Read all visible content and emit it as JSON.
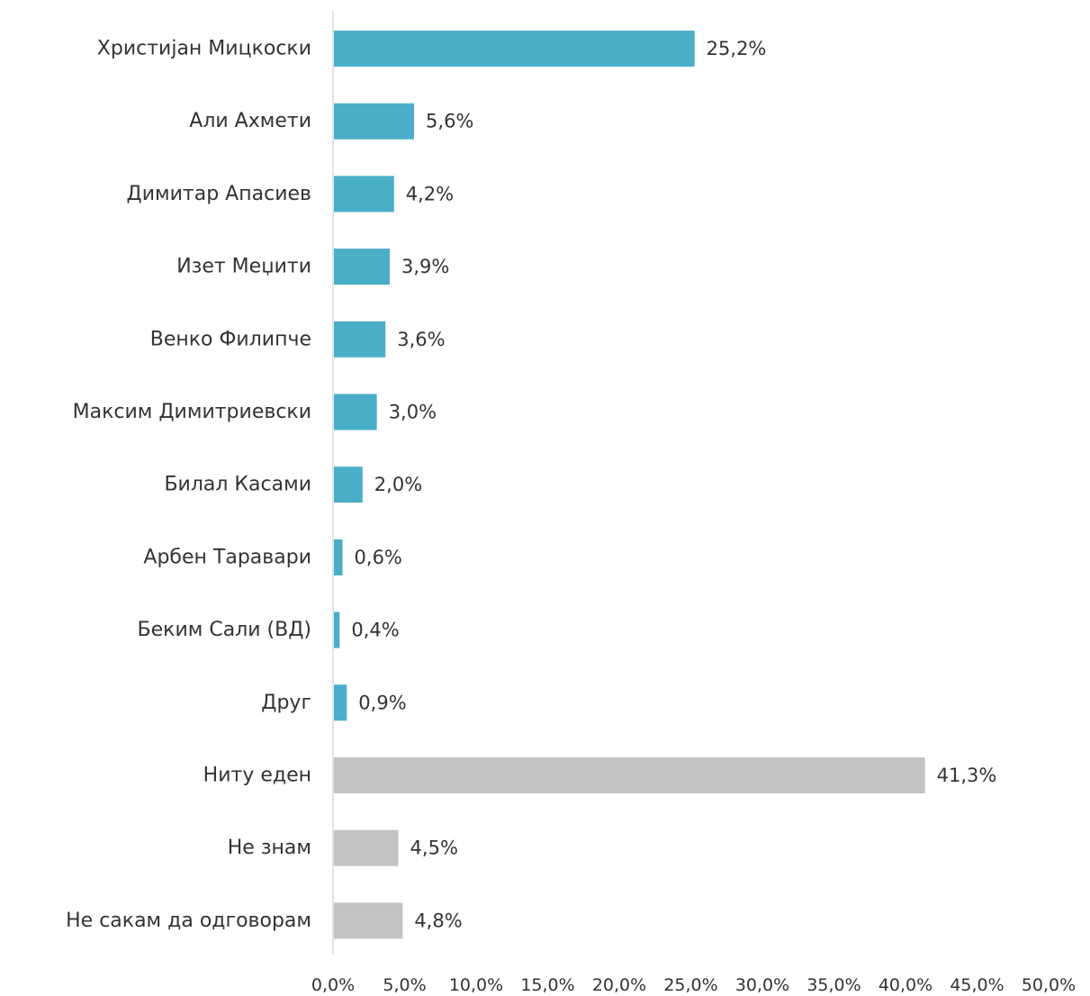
{
  "chart_data": {
    "type": "bar",
    "orientation": "horizontal",
    "categories": [
      "Христијан Мицкоски",
      "Али Ахмети",
      "Димитар Апасиев",
      "Изет Меџити",
      "Венко Филипче",
      "Максим Димитриевски",
      "Билал Касами",
      "Арбен Таравари",
      "Беким Сали (ВД)",
      "Друг",
      "Ниту еден",
      "Не знам",
      "Не сакам да одговорам"
    ],
    "values": [
      25.2,
      5.6,
      4.2,
      3.9,
      3.6,
      3.0,
      2.0,
      0.6,
      0.4,
      0.9,
      41.3,
      4.5,
      4.8
    ],
    "value_labels": [
      "25,2%",
      "5,6%",
      "4,2%",
      "3,9%",
      "3,6%",
      "3,0%",
      "2,0%",
      "0,6%",
      "0,4%",
      "0,9%",
      "41,3%",
      "4,5%",
      "4,8%"
    ],
    "bar_colors": [
      "#4aaec8",
      "#4aaec8",
      "#4aaec8",
      "#4aaec8",
      "#4aaec8",
      "#4aaec8",
      "#4aaec8",
      "#4aaec8",
      "#4aaec8",
      "#4aaec8",
      "#c3c3c3",
      "#c3c3c3",
      "#c3c3c3"
    ],
    "xlim": [
      0,
      50
    ],
    "x_ticks": [
      0,
      5,
      10,
      15,
      20,
      25,
      30,
      35,
      40,
      45,
      50
    ],
    "x_tick_labels": [
      "0,0%",
      "5,0%",
      "10,0%",
      "15,0%",
      "20,0%",
      "25,0%",
      "30,0%",
      "35,0%",
      "40,0%",
      "45,0%",
      "50,0%"
    ],
    "title": "",
    "xlabel": "",
    "ylabel": "",
    "grid": false,
    "legend": "none"
  },
  "colors": {
    "candidate_bar": "#4aaec8",
    "other_bar": "#c3c3c3",
    "axis": "#d9d9d9",
    "text": "#333333"
  }
}
